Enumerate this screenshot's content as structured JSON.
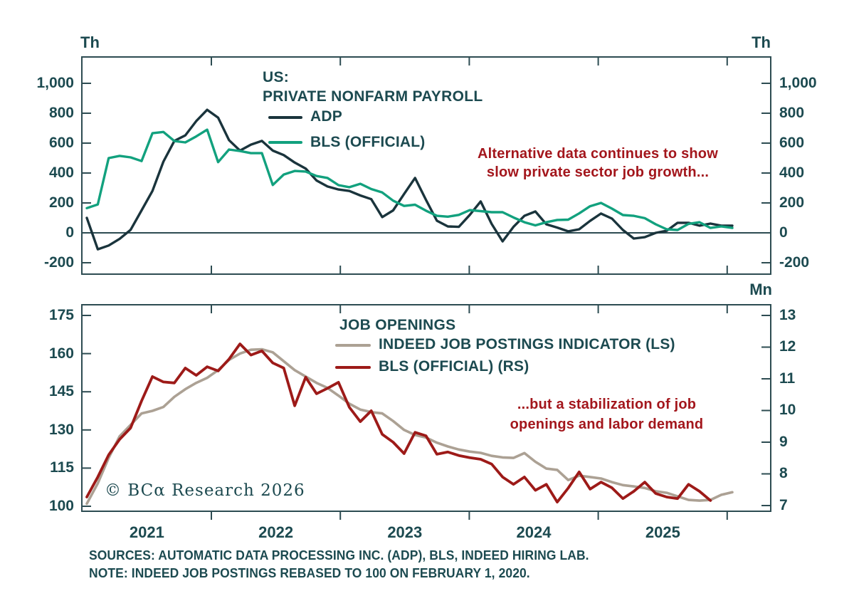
{
  "style": {
    "axis_color": "#2d4c52",
    "text_color": "#1c4a50",
    "annotation_color": "#a3161c",
    "background": "#ffffff"
  },
  "x_axis": {
    "year_labels": [
      "2021",
      "2022",
      "2023",
      "2024",
      "2025"
    ]
  },
  "footer": {
    "line1": "SOURCES: AUTOMATIC DATA PROCESSING INC. (ADP), BLS, INDEED HIRING LAB.",
    "line2": "NOTE: INDEED JOB POSTINGS REBASED TO 100 ON FEBRUARY 1, 2020."
  },
  "watermark": "© BCα Research 2026",
  "chart_data": [
    {
      "id": "private-nonfarm-payroll",
      "type": "line",
      "title_lines": [
        "US:",
        "PRIVATE NONFARM PAYROLL"
      ],
      "unit_left": "Th",
      "unit_right": "Th",
      "x_range": "Jan 2021 – Dec 2025, monthly",
      "ylim": [
        -276.2,
        1176.2
      ],
      "yticks": {
        "values": [
          1000,
          800,
          600,
          400,
          200,
          0,
          -200
        ],
        "labels": [
          "1,000",
          "800",
          "600",
          "400",
          "200",
          "0",
          "-200"
        ]
      },
      "zero_line": true,
      "legend_position": "top-center",
      "grid": false,
      "annotation": {
        "lines": [
          "Alternative data continues to show",
          "slow private sector job growth..."
        ],
        "color": "#a3161c"
      },
      "series": [
        {
          "name": "ADP",
          "color": "#1a343c",
          "width": 3.4,
          "axis": "left",
          "values": [
            100,
            -110,
            -85,
            -40,
            20,
            150,
            280,
            476,
            615,
            652,
            747,
            823,
            770,
            620,
            550,
            590,
            615,
            550,
            520,
            470,
            430,
            350,
            310,
            290,
            280,
            250,
            225,
            105,
            150,
            260,
            367,
            220,
            81,
            43,
            40,
            120,
            210,
            60,
            -57,
            40,
            114,
            143,
            57,
            35,
            10,
            24,
            80,
            129,
            95,
            19,
            -38,
            -29,
            0,
            14,
            67,
            67,
            48,
            62,
            48,
            48
          ]
        },
        {
          "name": "BLS (OFFICIAL)",
          "color": "#12a17e",
          "width": 3.4,
          "axis": "left",
          "values": [
            165,
            190,
            500,
            515,
            505,
            480,
            666,
            675,
            614,
            605,
            645,
            690,
            473,
            557,
            547,
            533,
            533,
            320,
            390,
            414,
            410,
            380,
            367,
            319,
            305,
            328,
            293,
            270,
            215,
            180,
            188,
            148,
            114,
            108,
            120,
            152,
            145,
            138,
            138,
            103,
            71,
            50,
            71,
            86,
            88,
            130,
            178,
            200,
            162,
            119,
            114,
            98,
            57,
            24,
            19,
            60,
            71,
            33,
            43,
            33
          ]
        }
      ]
    },
    {
      "id": "job-openings",
      "type": "line",
      "title_lines": [
        "JOB OPENINGS"
      ],
      "unit_right": "Mn",
      "x_range": "Jan 2021 – Dec 2025, monthly",
      "ylim_left": [
        98.04,
        179.2
      ],
      "ylim_right": [
        6.82,
        13.337
      ],
      "yticks_left": {
        "values": [
          175,
          160,
          145,
          130,
          115,
          100
        ],
        "labels": [
          "175",
          "160",
          "145",
          "130",
          "115",
          "100"
        ]
      },
      "yticks_right": {
        "values": [
          13,
          12,
          11,
          10,
          9,
          8,
          7
        ],
        "labels": [
          "13",
          "12",
          "11",
          "10",
          "9",
          "8",
          "7"
        ]
      },
      "grid": false,
      "annotation": {
        "lines": [
          "...but a stabilization of job",
          "openings and labor demand"
        ],
        "color": "#a3161c"
      },
      "series": [
        {
          "name": "INDEED JOB POSTINGS INDICATOR (LS)",
          "color": "#aca194",
          "width": 3.6,
          "axis": "left",
          "values": [
            101,
            109,
            119,
            127.5,
            132,
            136.5,
            137.5,
            139,
            143,
            146,
            148.5,
            150.5,
            153.5,
            157.5,
            160,
            161.5,
            161.7,
            160.5,
            157,
            153.5,
            151,
            148.5,
            146.5,
            143.5,
            140.3,
            138,
            137,
            136.5,
            133.5,
            130,
            128,
            127,
            125,
            123.5,
            122.3,
            121.5,
            121,
            119.8,
            119.2,
            119,
            120.9,
            117.5,
            114.8,
            114.3,
            110.3,
            112,
            111.5,
            110.9,
            109.5,
            108.3,
            107.8,
            107.2,
            105.9,
            105.3,
            103.9,
            102.5,
            102.2,
            102.5,
            104.5,
            105.5
          ]
        },
        {
          "name": "BLS (OFFICIAL) (RS)",
          "color": "#9d1a18",
          "width": 3.8,
          "axis": "right",
          "values": [
            7.27,
            7.9,
            8.6,
            9.09,
            9.45,
            10.3,
            11.07,
            10.9,
            10.87,
            11.34,
            11.11,
            11.38,
            11.25,
            11.62,
            12.1,
            11.75,
            11.88,
            11.5,
            11.34,
            10.15,
            11.05,
            10.53,
            10.7,
            10.89,
            10.1,
            9.65,
            9.99,
            9.25,
            9.0,
            8.64,
            9.31,
            9.2,
            8.62,
            8.69,
            8.58,
            8.51,
            8.46,
            8.31,
            7.9,
            7.67,
            7.9,
            7.48,
            7.67,
            7.11,
            7.55,
            8.06,
            7.52,
            7.74,
            7.56,
            7.22,
            7.45,
            7.74,
            7.38,
            7.27,
            7.22,
            7.67,
            7.45,
            7.16
          ]
        }
      ]
    }
  ]
}
